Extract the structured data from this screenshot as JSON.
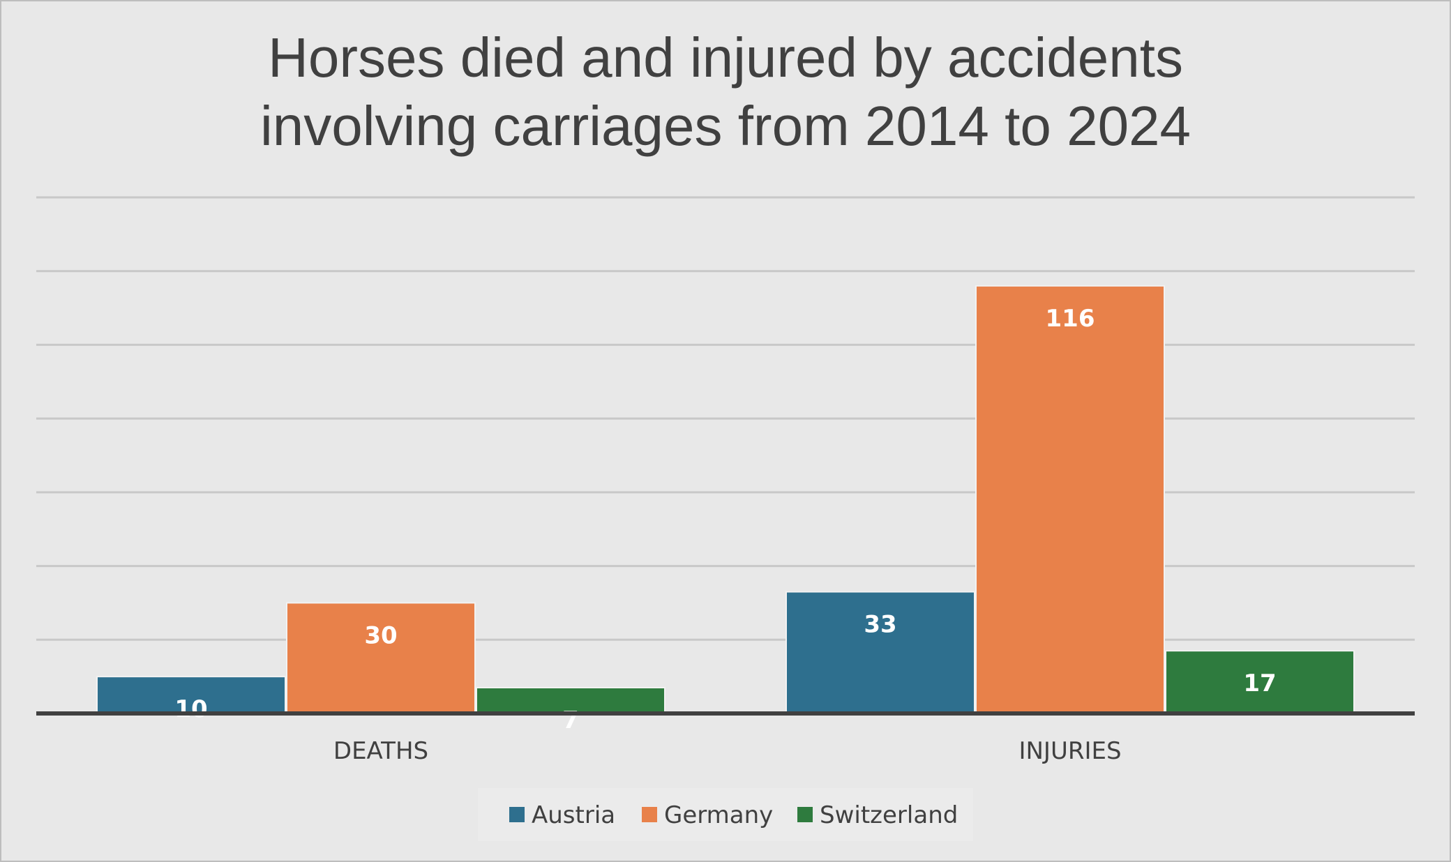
{
  "chart_data": {
    "type": "bar",
    "title_lines": [
      "Horses died and injured by accidents",
      "involving carriages from 2014 to 2024"
    ],
    "categories": [
      "DEATHS",
      "INJURIES"
    ],
    "series": [
      {
        "name": "Austria",
        "values": [
          10,
          33
        ],
        "color": "#2e6f8e"
      },
      {
        "name": "Germany",
        "values": [
          30,
          116
        ],
        "color": "#e8814a"
      },
      {
        "name": "Switzerland",
        "values": [
          7,
          17
        ],
        "color": "#2e7b3e"
      }
    ],
    "ylim": [
      0,
      140
    ],
    "grid": true,
    "legend_position": "bottom",
    "data_labels": true,
    "colors": {
      "background": "#e8e8e8",
      "gridline": "#c8c8c8",
      "axis": "#404040",
      "title": "#404040",
      "label": "#ffffff"
    }
  }
}
